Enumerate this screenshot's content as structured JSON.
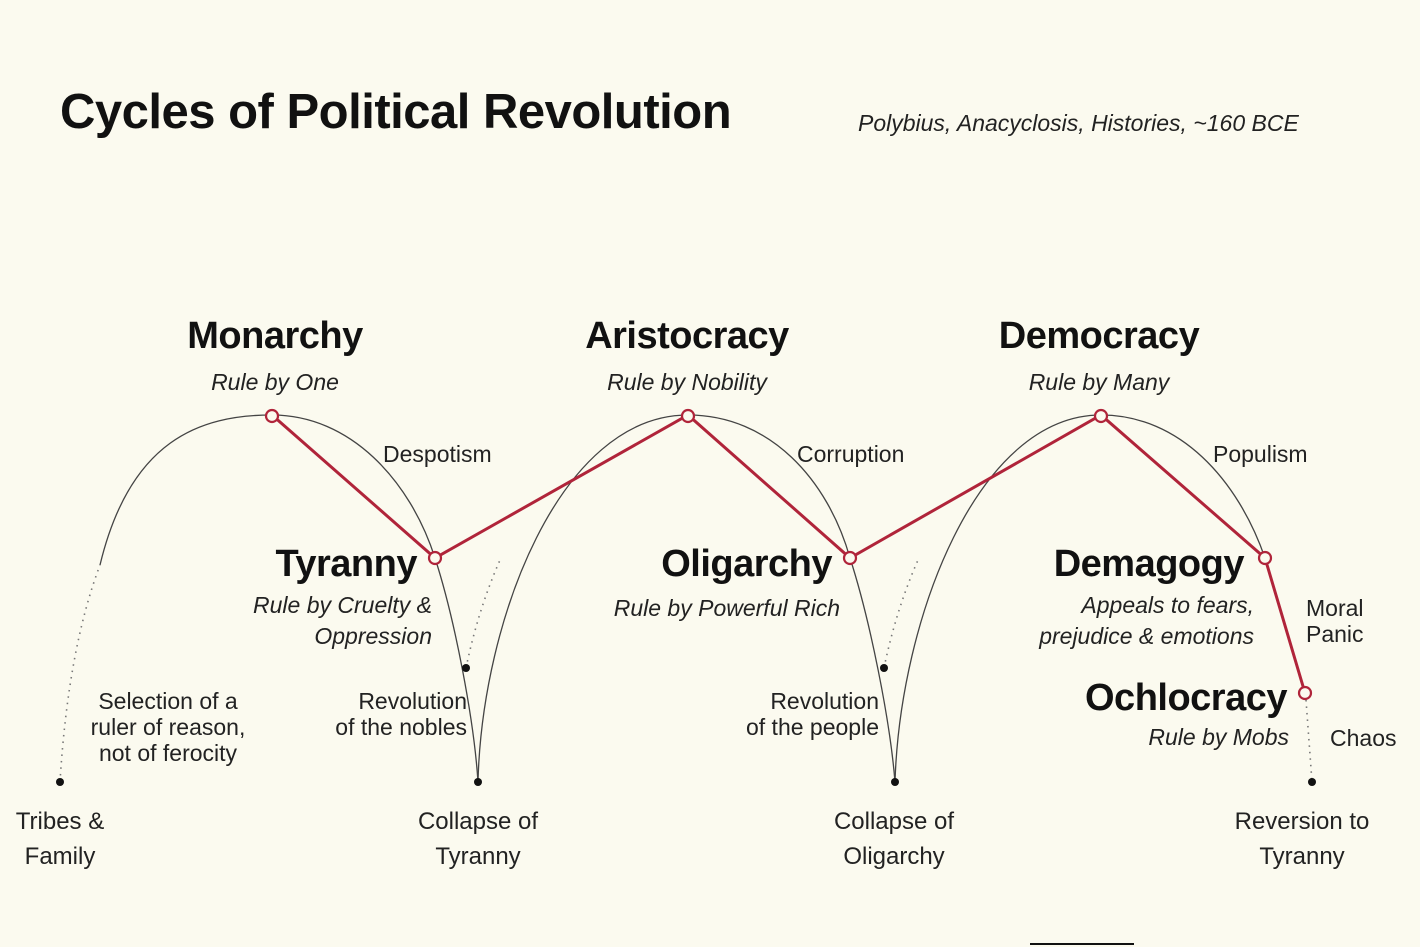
{
  "title": "Cycles of Political Revolution",
  "source": "Polybius, Anacyclosis, Histories, ~160 BCE",
  "colors": {
    "background": "#fbfaef",
    "cycle_path": "#b0243a",
    "arch": "#333333"
  },
  "stages": {
    "monarchy": {
      "name": "Monarchy",
      "desc": "Rule by One"
    },
    "tyranny": {
      "name": "Tyranny",
      "desc1": "Rule by Cruelty &",
      "desc2": "Oppression"
    },
    "aristocracy": {
      "name": "Aristocracy",
      "desc": "Rule by Nobility"
    },
    "oligarchy": {
      "name": "Oligarchy",
      "desc": "Rule by Powerful Rich"
    },
    "democracy": {
      "name": "Democracy",
      "desc": "Rule by Many"
    },
    "demagogy": {
      "name": "Demagogy",
      "desc1": "Appeals to fears,",
      "desc2": "prejudice & emotions"
    },
    "ochlocracy": {
      "name": "Ochlocracy",
      "desc": "Rule by Mobs"
    }
  },
  "transitions": {
    "despotism": "Despotism",
    "corruption": "Corruption",
    "populism": "Populism",
    "moral_panic": [
      "Moral",
      "Panic"
    ],
    "chaos": "Chaos",
    "selection": [
      "Selection of a",
      "ruler of reason,",
      "not of ferocity"
    ],
    "rev_nobles": [
      "Revolution",
      "of the nobles"
    ],
    "rev_people": [
      "Revolution",
      "of the people"
    ]
  },
  "endpoints": {
    "tribes": [
      "Tribes &",
      "Family"
    ],
    "collapse_tyranny": [
      "Collapse of",
      "Tyranny"
    ],
    "collapse_oligarchy": [
      "Collapse of",
      "Oligarchy"
    ],
    "reversion": [
      "Reversion to",
      "Tyranny"
    ]
  }
}
